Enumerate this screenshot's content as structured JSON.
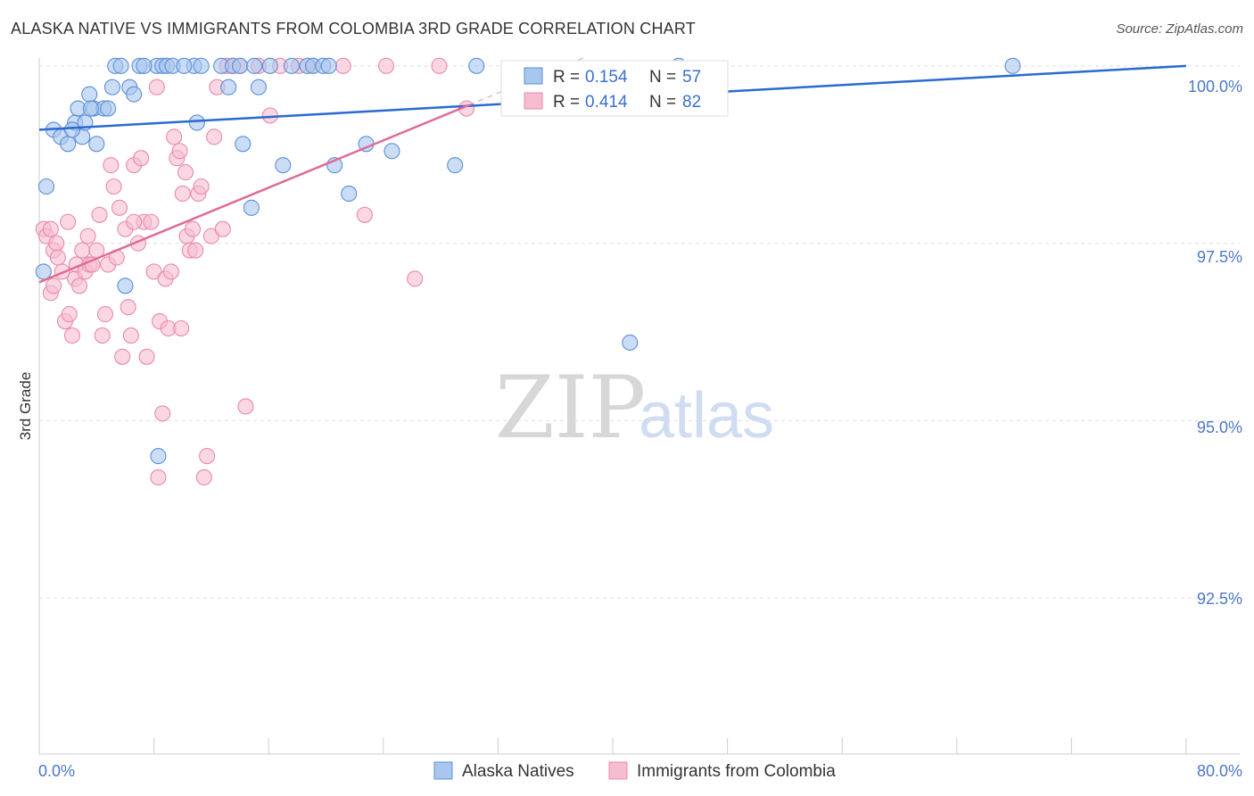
{
  "title": "ALASKA NATIVE VS IMMIGRANTS FROM COLOMBIA 3RD GRADE CORRELATION CHART",
  "source": "Source: ZipAtlas.com",
  "watermark": {
    "zip": "ZIP",
    "atlas": "atlas"
  },
  "colors": {
    "blue_fill": "#a9c6ee",
    "blue_stroke": "#5b8fd8",
    "blue_line": "#2a6ad0",
    "pink_fill": "#f6bcd0",
    "pink_stroke": "#e98aa9",
    "pink_line": "#e06b96",
    "grid": "#dddddd",
    "axis_text": "#4a78c8"
  },
  "legend": {
    "rows": [
      {
        "r_label": "R =",
        "r_value": "0.154",
        "n_label": "N =",
        "n_value": "57"
      },
      {
        "r_label": "R =",
        "r_value": "0.414",
        "n_label": "N =",
        "n_value": "82"
      }
    ]
  },
  "chart_data": {
    "type": "scatter",
    "xlabel": "",
    "ylabel": "3rd Grade",
    "xlim": [
      0,
      80
    ],
    "ylim": [
      90.3,
      100.3
    ],
    "x_tick_labels": [
      "0.0%",
      "80.0%"
    ],
    "y_ticks": [
      92.5,
      95.0,
      97.5,
      100.0
    ],
    "y_tick_labels": [
      "92.5%",
      "95.0%",
      "97.5%",
      "100.0%"
    ],
    "series": [
      {
        "name": "Alaska Natives",
        "trend": {
          "x": [
            0,
            80
          ],
          "y": [
            99.1,
            100.0
          ]
        },
        "points": [
          [
            0.5,
            98.3
          ],
          [
            1.0,
            99.1
          ],
          [
            1.5,
            99.0
          ],
          [
            2.0,
            98.9
          ],
          [
            2.5,
            99.2
          ],
          [
            2.7,
            99.4
          ],
          [
            3.0,
            99.0
          ],
          [
            3.2,
            99.2
          ],
          [
            3.5,
            99.6
          ],
          [
            3.8,
            99.4
          ],
          [
            4.0,
            98.9
          ],
          [
            4.5,
            99.4
          ],
          [
            5.1,
            99.7
          ],
          [
            5.3,
            100.0
          ],
          [
            5.7,
            100.0
          ],
          [
            6.3,
            99.7
          ],
          [
            6.6,
            99.6
          ],
          [
            7.0,
            100.0
          ],
          [
            8.2,
            100.0
          ],
          [
            8.6,
            100.0
          ],
          [
            8.9,
            100.0
          ],
          [
            9.3,
            100.0
          ],
          [
            10.8,
            100.0
          ],
          [
            11.0,
            99.2
          ],
          [
            11.3,
            100.0
          ],
          [
            12.7,
            100.0
          ],
          [
            13.2,
            99.7
          ],
          [
            13.5,
            100.0
          ],
          [
            14.0,
            100.0
          ],
          [
            14.2,
            98.9
          ],
          [
            15.0,
            100.0
          ],
          [
            15.3,
            99.7
          ],
          [
            16.1,
            100.0
          ],
          [
            17.0,
            98.6
          ],
          [
            17.6,
            100.0
          ],
          [
            18.7,
            100.0
          ],
          [
            19.1,
            100.0
          ],
          [
            19.8,
            100.0
          ],
          [
            20.6,
            98.6
          ],
          [
            21.6,
            98.2
          ],
          [
            22.8,
            98.9
          ],
          [
            24.6,
            98.8
          ],
          [
            29.0,
            98.6
          ],
          [
            30.5,
            100.0
          ],
          [
            41.2,
            96.1
          ],
          [
            44.6,
            100.0
          ],
          [
            67.9,
            100.0
          ],
          [
            0.3,
            97.1
          ],
          [
            6.0,
            96.9
          ],
          [
            8.3,
            94.5
          ],
          [
            14.8,
            98.0
          ],
          [
            3.6,
            99.4
          ],
          [
            10.1,
            100.0
          ],
          [
            20.2,
            100.0
          ],
          [
            2.3,
            99.1
          ],
          [
            4.8,
            99.4
          ],
          [
            7.3,
            100.0
          ]
        ]
      },
      {
        "name": "Immigrants from Colombia",
        "trend": {
          "x": [
            0,
            30
          ],
          "y": [
            96.95,
            99.45
          ]
        },
        "points": [
          [
            0.3,
            97.7
          ],
          [
            0.5,
            97.6
          ],
          [
            0.8,
            97.7
          ],
          [
            1.0,
            97.4
          ],
          [
            1.2,
            97.5
          ],
          [
            1.3,
            97.3
          ],
          [
            1.6,
            97.1
          ],
          [
            1.8,
            96.4
          ],
          [
            2.0,
            97.8
          ],
          [
            2.1,
            96.5
          ],
          [
            2.3,
            96.2
          ],
          [
            2.5,
            97.0
          ],
          [
            2.6,
            97.2
          ],
          [
            2.8,
            96.9
          ],
          [
            3.0,
            97.4
          ],
          [
            3.2,
            97.1
          ],
          [
            3.4,
            97.6
          ],
          [
            3.5,
            97.2
          ],
          [
            4.0,
            97.4
          ],
          [
            4.2,
            97.9
          ],
          [
            4.4,
            96.2
          ],
          [
            4.6,
            96.5
          ],
          [
            4.8,
            97.2
          ],
          [
            5.0,
            98.6
          ],
          [
            5.2,
            98.3
          ],
          [
            5.4,
            97.3
          ],
          [
            5.6,
            98.0
          ],
          [
            5.8,
            95.9
          ],
          [
            6.0,
            97.7
          ],
          [
            6.2,
            96.6
          ],
          [
            6.4,
            96.2
          ],
          [
            6.6,
            98.6
          ],
          [
            6.9,
            97.5
          ],
          [
            7.1,
            98.7
          ],
          [
            7.3,
            97.8
          ],
          [
            7.5,
            95.9
          ],
          [
            7.8,
            97.8
          ],
          [
            8.0,
            97.1
          ],
          [
            8.2,
            99.7
          ],
          [
            8.4,
            96.4
          ],
          [
            8.6,
            95.1
          ],
          [
            8.8,
            97.0
          ],
          [
            9.0,
            96.3
          ],
          [
            9.2,
            97.1
          ],
          [
            9.4,
            99.0
          ],
          [
            9.6,
            98.7
          ],
          [
            9.8,
            98.8
          ],
          [
            10.0,
            98.2
          ],
          [
            10.2,
            98.5
          ],
          [
            10.3,
            97.6
          ],
          [
            10.5,
            97.4
          ],
          [
            10.7,
            97.7
          ],
          [
            10.9,
            97.4
          ],
          [
            11.1,
            98.2
          ],
          [
            11.3,
            98.3
          ],
          [
            11.5,
            94.2
          ],
          [
            11.7,
            94.5
          ],
          [
            12.0,
            97.6
          ],
          [
            12.2,
            99.0
          ],
          [
            12.4,
            99.7
          ],
          [
            12.8,
            97.7
          ],
          [
            13.1,
            100.0
          ],
          [
            13.5,
            100.0
          ],
          [
            14.0,
            100.0
          ],
          [
            14.4,
            95.2
          ],
          [
            15.3,
            100.0
          ],
          [
            16.1,
            99.3
          ],
          [
            16.8,
            100.0
          ],
          [
            18.1,
            100.0
          ],
          [
            19.1,
            100.0
          ],
          [
            21.2,
            100.0
          ],
          [
            22.7,
            97.9
          ],
          [
            24.2,
            100.0
          ],
          [
            26.2,
            97.0
          ],
          [
            27.9,
            100.0
          ],
          [
            29.8,
            99.4
          ],
          [
            9.9,
            96.3
          ],
          [
            8.3,
            94.2
          ],
          [
            0.8,
            96.8
          ],
          [
            1.0,
            96.9
          ],
          [
            3.7,
            97.2
          ],
          [
            6.6,
            97.8
          ]
        ]
      }
    ]
  },
  "bottom_legend": [
    "Alaska Natives",
    "Immigrants from Colombia"
  ]
}
